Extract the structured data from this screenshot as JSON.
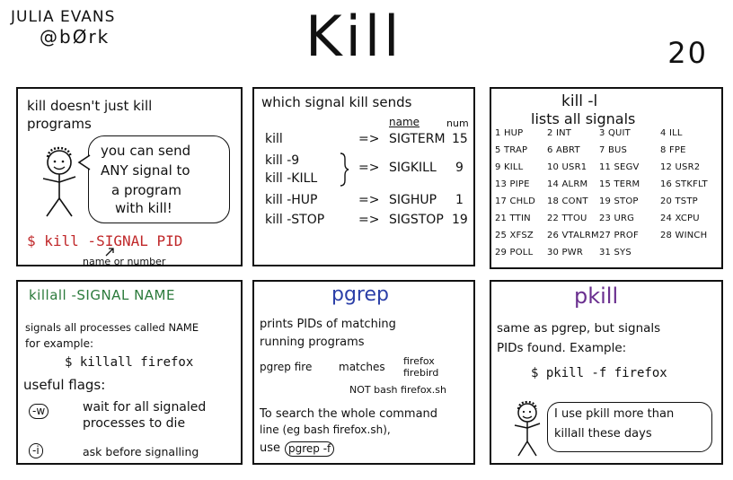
{
  "header": {
    "author_name": "JULIA EVANS",
    "author_handle": "@bØrk",
    "title": "Kill",
    "page_number": "20"
  },
  "panel1": {
    "heading_line1": "kill doesn't just kill",
    "heading_line2": "programs",
    "bubble_lines": [
      "you can send",
      "ANY signal to",
      "a program",
      "with kill!"
    ],
    "command": "$ kill -SIGNAL PID",
    "note": "name or number"
  },
  "panel2": {
    "heading": "which signal kill sends",
    "col_name": "name",
    "col_num": "num",
    "rows": [
      {
        "cmd": "kill",
        "arrow": "=>",
        "name": "SIGTERM",
        "num": "15"
      },
      {
        "cmd": "kill -9",
        "arrow": "",
        "name": "",
        "num": ""
      },
      {
        "cmd": "kill -KILL",
        "arrow": "=>",
        "name": "SIGKILL",
        "num": "9"
      },
      {
        "cmd": "kill -HUP",
        "arrow": "=>",
        "name": "SIGHUP",
        "num": "1"
      },
      {
        "cmd": "kill -STOP",
        "arrow": "=>",
        "name": "SIGSTOP",
        "num": "19"
      }
    ]
  },
  "panel3": {
    "heading": "kill -l",
    "subheading": "lists all signals",
    "signals": [
      [
        "1 HUP",
        "2 INT",
        "3 QUIT",
        "4 ILL"
      ],
      [
        "5 TRAP",
        "6 ABRT",
        "7 BUS",
        "8 FPE"
      ],
      [
        "9 KILL",
        "10 USR1",
        "11 SEGV",
        "12 USR2"
      ],
      [
        "13 PIPE",
        "14 ALRM",
        "15 TERM",
        "16 STKFLT"
      ],
      [
        "17 CHLD",
        "18 CONT",
        "19 STOP",
        "20 TSTP"
      ],
      [
        "21 TTIN",
        "22 TTOU",
        "23 URG",
        "24 XCPU"
      ],
      [
        "25 XFSZ",
        "26 VTALRM",
        "27 PROF",
        "28 WINCH"
      ],
      [
        "29 POLL",
        "30 PWR",
        "31 SYS",
        ""
      ]
    ]
  },
  "panel4": {
    "heading": "killall -SIGNAL NAME",
    "line1": "signals all processes called NAME",
    "line2": "for example:",
    "example": "$ killall firefox",
    "flags_label": "useful flags:",
    "flag_w": "-w",
    "flag_w_desc1": "wait for all signaled",
    "flag_w_desc2": "processes to die",
    "flag_i": "-i",
    "flag_i_desc": "ask before signalling"
  },
  "panel5": {
    "heading": "pgrep",
    "line1": "prints PIDs of matching",
    "line2": "running programs",
    "cmd": "pgrep fire",
    "matches": "matches",
    "match1": "firefox",
    "match2": "firebird",
    "notmatch": "NOT bash firefox.sh",
    "search1": "To search the whole command",
    "search2": "line (eg bash firefox.sh),",
    "search3": "use",
    "search_flag": "pgrep -f"
  },
  "panel6": {
    "heading": "pkill",
    "line1": "same as pgrep, but signals",
    "line2": "PIDs found. Example:",
    "example": "$ pkill -f firefox",
    "bubble1": "I use pkill more than",
    "bubble2": "killall these days"
  }
}
